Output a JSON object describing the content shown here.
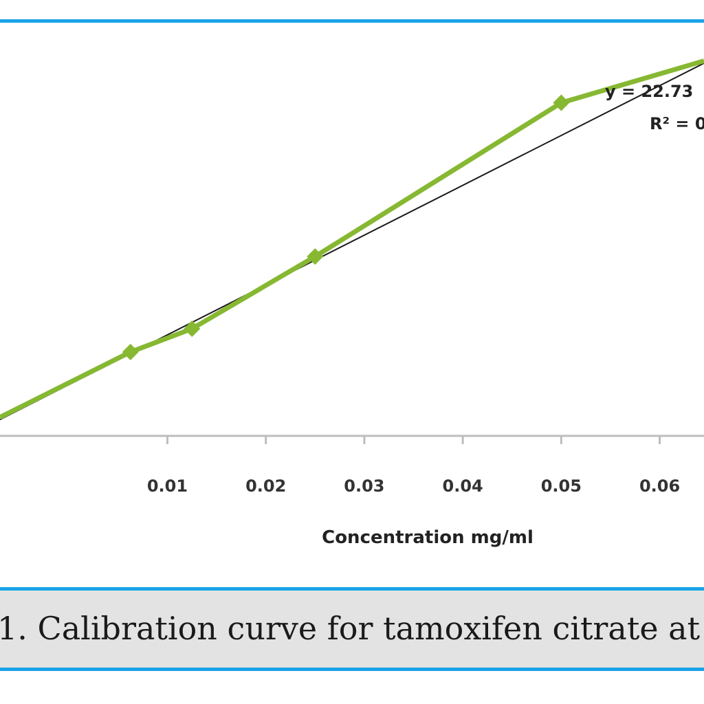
{
  "colors": {
    "frame_blue": "#1aa3e8",
    "series_green": "#86b832",
    "trendline": "#1a1a1a",
    "caption_bg": "#e3e3e3"
  },
  "chart_data": {
    "type": "line",
    "xlabel": "Concentration mg/ml",
    "ylabel": "",
    "xlim": [
      -0.007,
      0.0645
    ],
    "x_ticks": [
      0.01,
      0.02,
      0.03,
      0.04,
      0.05,
      0.06
    ],
    "x_tick_labels": [
      "0.01",
      "0.02",
      "0.03",
      "0.04",
      "0.05",
      "0.06"
    ],
    "ylim": [
      0,
      1.65
    ],
    "grid": false,
    "series": [
      {
        "values_x": [
          -0.007,
          0.00625,
          0.0125,
          0.025,
          0.05,
          0.0645
        ],
        "values_y": [
          0.08,
          0.36,
          0.46,
          0.77,
          1.43,
          1.61
        ],
        "marker": "diamond"
      }
    ],
    "trendline": {
      "type": "linear",
      "x": [
        -0.007,
        0.0645
      ],
      "y": [
        0.07,
        1.6
      ]
    },
    "annotations": {
      "equation": "y = 22.73",
      "r_squared": "R² = 0"
    }
  },
  "caption": {
    "text": "1. Calibration curve for tamoxifen citrate at"
  }
}
